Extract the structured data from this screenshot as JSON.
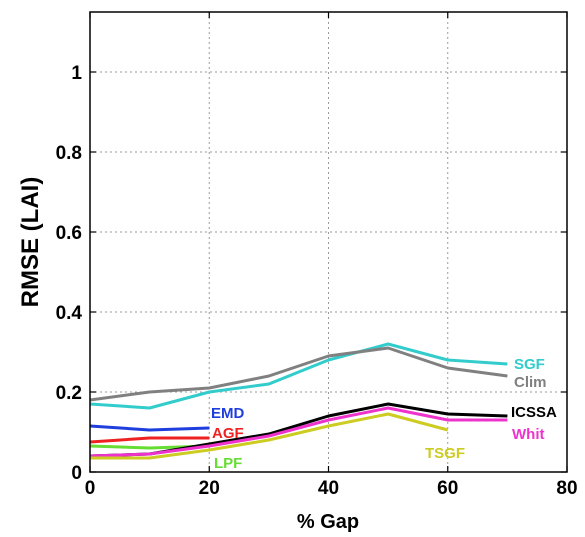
{
  "chart_data": {
    "type": "line",
    "title": "",
    "xlabel": "% Gap",
    "ylabel": "RMSE (LAI)",
    "xlim": [
      0,
      80
    ],
    "ylim": [
      0,
      1.15
    ],
    "xticks": [
      0,
      20,
      40,
      60,
      80
    ],
    "yticks": [
      0,
      0.2,
      0.4,
      0.6,
      0.8,
      1
    ],
    "xtick_labels": [
      "0",
      "20",
      "40",
      "60",
      "80"
    ],
    "ytick_labels": [
      "0",
      "0.2",
      "0.4",
      "0.6",
      "0.8",
      "1"
    ],
    "grid": true,
    "legend": "inline labels beside lines",
    "series": [
      {
        "name": "SGF",
        "color": "#33cccc",
        "x": [
          0,
          10,
          20,
          30,
          40,
          50,
          60,
          70
        ],
        "y": [
          0.17,
          0.16,
          0.2,
          0.22,
          0.28,
          0.32,
          0.28,
          0.27
        ]
      },
      {
        "name": "Clim",
        "color": "#808080",
        "x": [
          0,
          10,
          20,
          30,
          40,
          50,
          60,
          70
        ],
        "y": [
          0.18,
          0.2,
          0.21,
          0.24,
          0.29,
          0.31,
          0.26,
          0.24
        ]
      },
      {
        "name": "EMD",
        "color": "#1f3fdd",
        "x": [
          0,
          10,
          20
        ],
        "y": [
          0.115,
          0.105,
          0.11
        ]
      },
      {
        "name": "AGF",
        "color": "#ee2222",
        "x": [
          0,
          10,
          20
        ],
        "y": [
          0.075,
          0.085,
          0.085
        ]
      },
      {
        "name": "LPF",
        "color": "#66dd33",
        "x": [
          0,
          10,
          20
        ],
        "y": [
          0.065,
          0.06,
          0.065
        ]
      },
      {
        "name": "ICSSA",
        "color": "#000000",
        "x": [
          0,
          10,
          20,
          30,
          40,
          50,
          60,
          70
        ],
        "y": [
          0.04,
          0.045,
          0.07,
          0.095,
          0.14,
          0.17,
          0.145,
          0.14
        ]
      },
      {
        "name": "Whit",
        "color": "#ee33cc",
        "x": [
          0,
          10,
          20,
          30,
          40,
          50,
          60,
          70
        ],
        "y": [
          0.04,
          0.045,
          0.065,
          0.09,
          0.13,
          0.16,
          0.13,
          0.13
        ]
      },
      {
        "name": "TSGF",
        "color": "#cccc22",
        "x": [
          0,
          10,
          20,
          30,
          40,
          50,
          60
        ],
        "y": [
          0.035,
          0.035,
          0.055,
          0.08,
          0.115,
          0.145,
          0.105
        ]
      }
    ],
    "annotations": [
      {
        "text": "SGF",
        "color": "#33cccc"
      },
      {
        "text": "Clim",
        "color": "#808080"
      },
      {
        "text": "EMD",
        "color": "#1f3fdd"
      },
      {
        "text": "AGF",
        "color": "#ee2222"
      },
      {
        "text": "LPF",
        "color": "#66dd33"
      },
      {
        "text": "ICSSA",
        "color": "#000000"
      },
      {
        "text": "Whit",
        "color": "#ee33cc"
      },
      {
        "text": "TSGF",
        "color": "#cccc22"
      }
    ]
  }
}
